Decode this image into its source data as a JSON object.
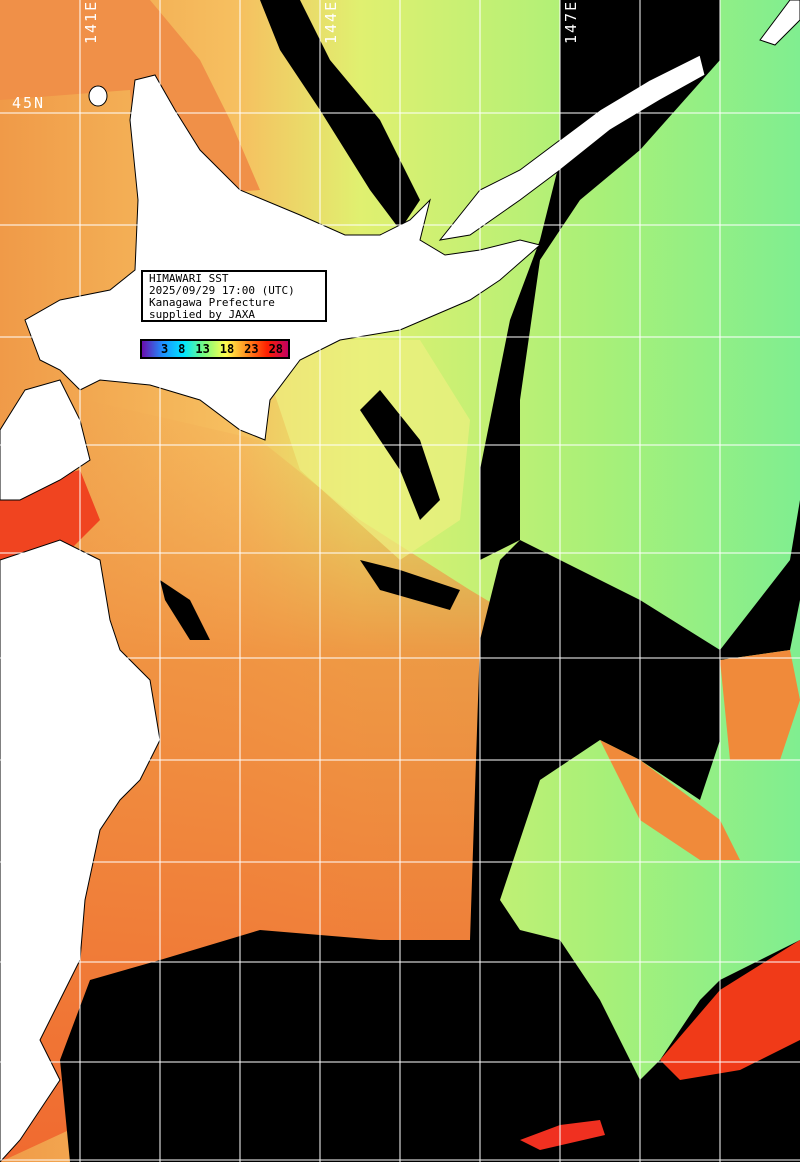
{
  "info_box": {
    "line1": "HIMAWARI SST",
    "line2": "2025/09/29 17:00 (UTC)",
    "line3": "Kanagawa Prefecture",
    "line4": "supplied by JAXA"
  },
  "colorbar": {
    "ticks": [
      "3",
      "8",
      "13",
      "18",
      "23",
      "28"
    ],
    "colors": [
      "#6a0dad",
      "#1e90ff",
      "#00e5ff",
      "#7cfc7c",
      "#ffff50",
      "#ff9020",
      "#ff2000",
      "#c00060"
    ]
  },
  "grid_labels": {
    "lon": [
      "141E",
      "144E",
      "147E"
    ],
    "lat": [
      "45N"
    ]
  },
  "colors": {
    "land": "#ffffff",
    "cloud_missing": "#000000",
    "grid": "#ffffff",
    "warm_sea": "#f0883a",
    "mid_sea": "#e4f070",
    "cool_sea": "#8ef088",
    "hot_sea": "#f03a18"
  }
}
